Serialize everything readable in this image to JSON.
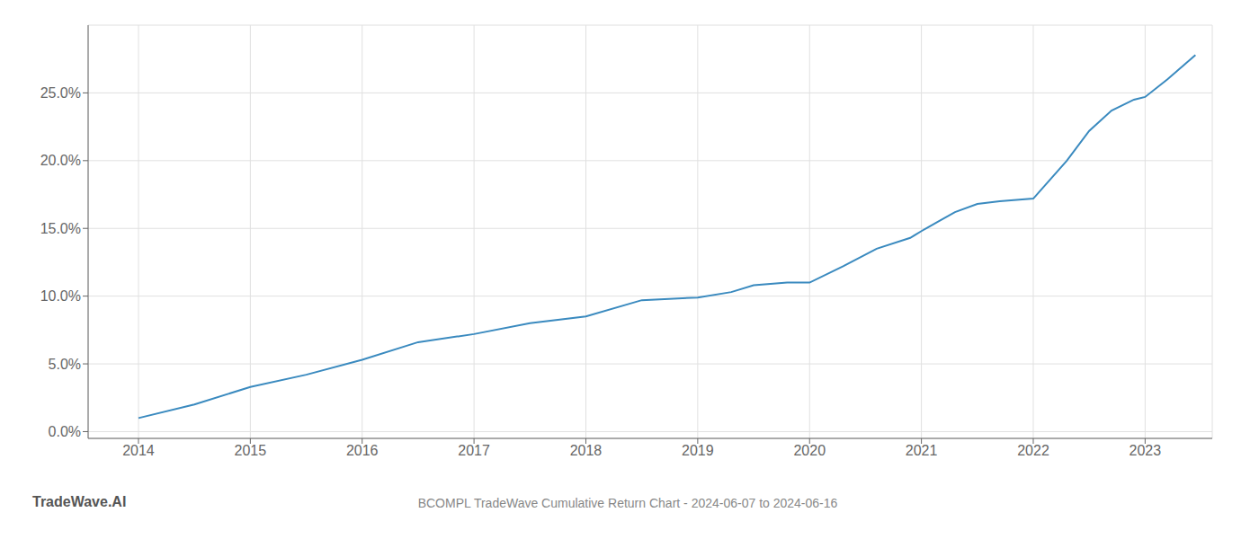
{
  "chart_data": {
    "type": "line",
    "title": "BCOMPL TradeWave Cumulative Return Chart - 2024-06-07 to 2024-06-16",
    "annotations": [
      "TradeWave.AI"
    ],
    "x": [
      2014.0,
      2014.5,
      2015.0,
      2015.5,
      2016.0,
      2016.5,
      2017.0,
      2017.5,
      2018.0,
      2018.5,
      2019.0,
      2019.3,
      2019.5,
      2019.8,
      2020.0,
      2020.3,
      2020.6,
      2020.9,
      2021.0,
      2021.15,
      2021.3,
      2021.5,
      2021.7,
      2022.0,
      2022.3,
      2022.5,
      2022.7,
      2022.9,
      2023.0,
      2023.2,
      2023.45
    ],
    "values": [
      0.01,
      0.02,
      0.033,
      0.042,
      0.053,
      0.066,
      0.072,
      0.08,
      0.085,
      0.097,
      0.099,
      0.103,
      0.108,
      0.11,
      0.11,
      0.122,
      0.135,
      0.143,
      0.148,
      0.155,
      0.162,
      0.168,
      0.17,
      0.172,
      0.2,
      0.222,
      0.237,
      0.245,
      0.247,
      0.26,
      0.278
    ],
    "color": "#3a8abf",
    "xlim": [
      2013.55,
      2023.6
    ],
    "xticks": [
      2014,
      2015,
      2016,
      2017,
      2018,
      2019,
      2020,
      2021,
      2022,
      2023
    ],
    "ylim": [
      -0.005,
      0.3
    ],
    "yticks": [
      {
        "value": 0.0,
        "label": "0.0%"
      },
      {
        "value": 0.05,
        "label": "5.0%"
      },
      {
        "value": 0.1,
        "label": "10.0%"
      },
      {
        "value": 0.15,
        "label": "15.0%"
      },
      {
        "value": 0.2,
        "label": "20.0%"
      },
      {
        "value": 0.25,
        "label": "25.0%"
      }
    ],
    "grid": true
  }
}
